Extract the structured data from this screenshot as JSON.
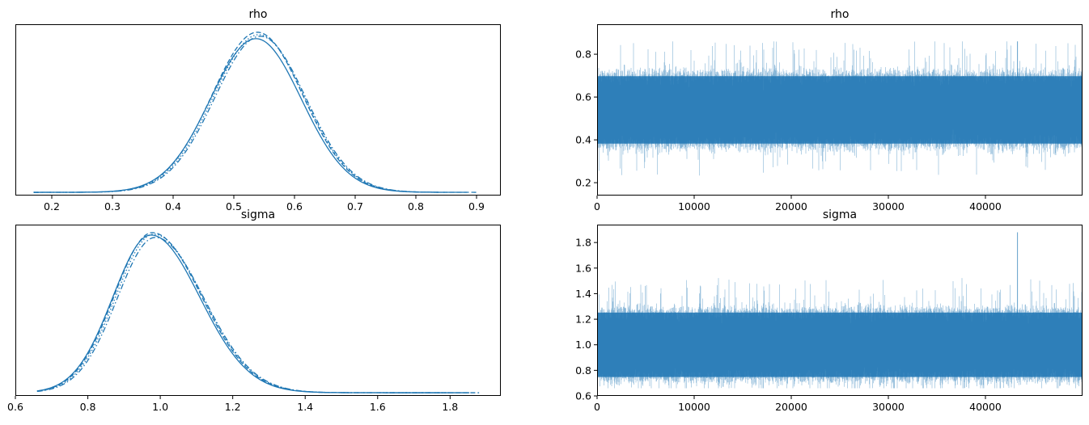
{
  "figure": {
    "accent_color": "#1f77b4"
  },
  "chart_data": [
    {
      "type": "line",
      "panel": "rho-density",
      "title": "rho",
      "xlabel": "",
      "ylabel": "",
      "xlim": [
        0.14,
        0.94
      ],
      "ylim": [
        -0.02,
        1.05
      ],
      "xticks": [
        0.2,
        0.3,
        0.4,
        0.5,
        0.6,
        0.7,
        0.8,
        0.9
      ],
      "xtick_labels": [
        "0.2",
        "0.3",
        "0.4",
        "0.5",
        "0.6",
        "0.7",
        "0.8",
        "0.9"
      ],
      "yticks_visible": false,
      "series_style": [
        "solid",
        "dashed",
        "dotted",
        "dashdot"
      ],
      "distribution": {
        "mode": 0.54,
        "sd_left": 0.075,
        "sd_right": 0.075,
        "x_min": 0.17,
        "x_max": 0.9,
        "peak_heights": [
          0.96,
          1.0,
          0.985,
          0.975
        ]
      }
    },
    {
      "type": "line",
      "panel": "rho-trace",
      "title": "rho",
      "xlabel": "",
      "ylabel": "",
      "xlim": [
        0,
        49999
      ],
      "ylim": [
        0.14,
        0.94
      ],
      "xticks": [
        0,
        10000,
        20000,
        30000,
        40000
      ],
      "xtick_labels": [
        "0",
        "10000",
        "20000",
        "30000",
        "40000"
      ],
      "yticks": [
        0.2,
        0.4,
        0.6,
        0.8
      ],
      "ytick_labels": [
        "0.2",
        "0.4",
        "0.6",
        "0.8"
      ],
      "trace": {
        "mean": 0.54,
        "sd": 0.075,
        "min": 0.17,
        "max": 0.86,
        "n_draws": 50000,
        "n_chains": 4
      }
    },
    {
      "type": "line",
      "panel": "sigma-density",
      "title": "sigma",
      "xlabel": "",
      "ylabel": "",
      "xlim": [
        0.6,
        1.94
      ],
      "ylim": [
        -0.02,
        1.05
      ],
      "xticks": [
        0.6,
        0.8,
        1.0,
        1.2,
        1.4,
        1.6,
        1.8
      ],
      "xtick_labels": [
        "0.6",
        "0.8",
        "1.0",
        "1.2",
        "1.4",
        "1.6",
        "1.8"
      ],
      "yticks_visible": false,
      "series_style": [
        "solid",
        "dashed",
        "dotted",
        "dashdot"
      ],
      "distribution": {
        "mode": 0.98,
        "sd_left": 0.105,
        "sd_right": 0.135,
        "x_min": 0.66,
        "x_max": 1.88,
        "peak_heights": [
          0.985,
          1.0,
          0.99,
          0.97
        ]
      }
    },
    {
      "type": "line",
      "panel": "sigma-trace",
      "title": "sigma",
      "xlabel": "",
      "ylabel": "",
      "xlim": [
        0,
        49999
      ],
      "ylim": [
        0.6,
        1.94
      ],
      "xticks": [
        0,
        10000,
        20000,
        30000,
        40000
      ],
      "xtick_labels": [
        "0",
        "10000",
        "20000",
        "30000",
        "40000"
      ],
      "yticks": [
        0.6,
        0.8,
        1.0,
        1.2,
        1.4,
        1.6,
        1.8
      ],
      "ytick_labels": [
        "0.6",
        "0.8",
        "1.0",
        "1.2",
        "1.4",
        "1.6",
        "1.8"
      ],
      "trace": {
        "mean": 1.0,
        "sd": 0.12,
        "min": 0.66,
        "max": 1.88,
        "n_draws": 50000,
        "n_chains": 4
      }
    }
  ]
}
